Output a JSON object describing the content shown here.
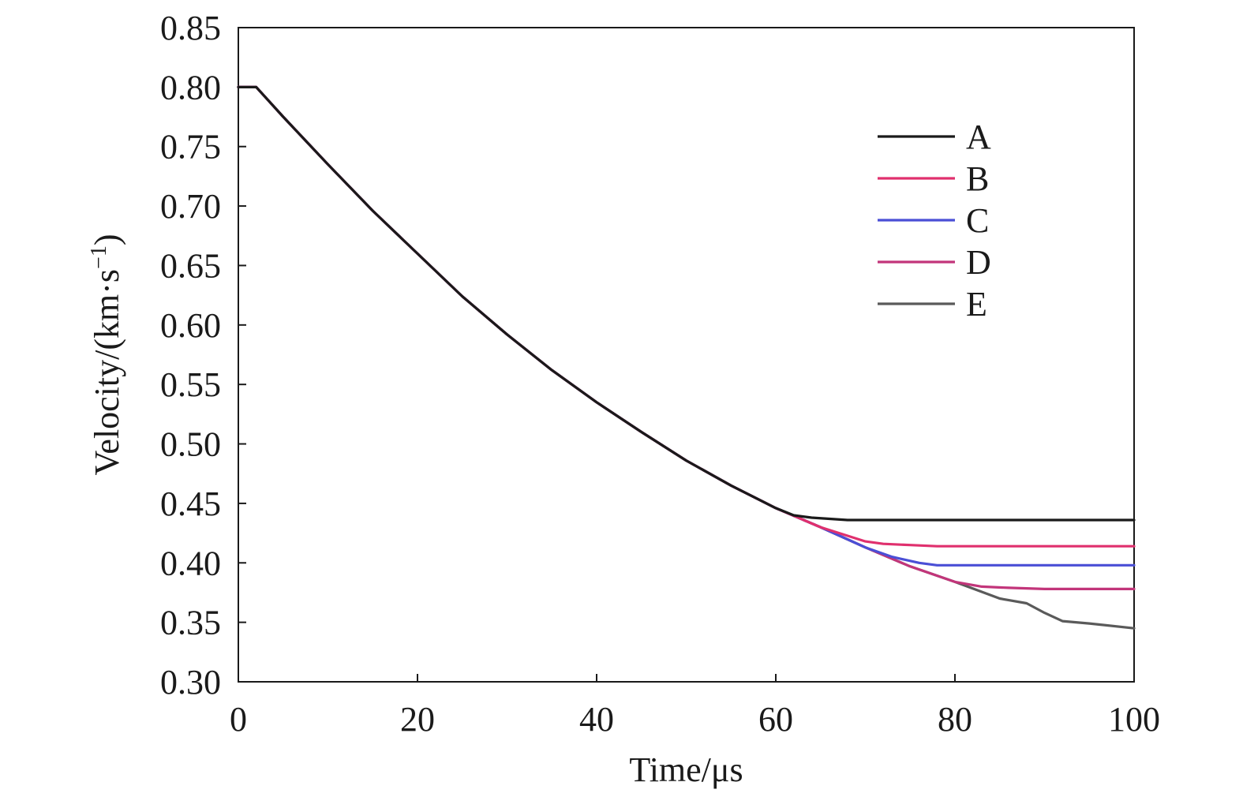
{
  "chart_data": {
    "type": "line",
    "xlabel": "Time/μs",
    "ylabel_main": "Velocity/(km·s",
    "ylabel_sup": "−1",
    "ylabel_end": ")",
    "xlim": [
      0,
      100
    ],
    "ylim": [
      0.3,
      0.85
    ],
    "xticks": [
      0,
      20,
      40,
      60,
      80,
      100
    ],
    "yticks": [
      "0.30",
      "0.35",
      "0.40",
      "0.45",
      "0.50",
      "0.55",
      "0.60",
      "0.65",
      "0.70",
      "0.75",
      "0.80",
      "0.85"
    ],
    "grid": false,
    "legend_position": "top-right",
    "series": [
      {
        "name": "A",
        "color": "#1a1a1a",
        "x": [
          0,
          2,
          5,
          10,
          15,
          20,
          25,
          30,
          35,
          40,
          45,
          50,
          55,
          60,
          62,
          64,
          66,
          68,
          70,
          75,
          80,
          100
        ],
        "y": [
          0.8,
          0.8,
          0.775,
          0.735,
          0.696,
          0.66,
          0.624,
          0.592,
          0.562,
          0.535,
          0.51,
          0.486,
          0.465,
          0.446,
          0.44,
          0.438,
          0.437,
          0.436,
          0.436,
          0.436,
          0.436,
          0.436
        ]
      },
      {
        "name": "B",
        "color": "#e0306e",
        "x": [
          0,
          2,
          5,
          10,
          15,
          20,
          25,
          30,
          35,
          40,
          45,
          50,
          55,
          60,
          65,
          70,
          72,
          75,
          78,
          80,
          85,
          100
        ],
        "y": [
          0.8,
          0.8,
          0.775,
          0.735,
          0.696,
          0.66,
          0.624,
          0.592,
          0.562,
          0.535,
          0.51,
          0.486,
          0.465,
          0.446,
          0.43,
          0.418,
          0.416,
          0.415,
          0.414,
          0.414,
          0.414,
          0.414
        ]
      },
      {
        "name": "C",
        "color": "#4a4fd6",
        "x": [
          0,
          2,
          5,
          10,
          15,
          20,
          25,
          30,
          35,
          40,
          45,
          50,
          55,
          60,
          65,
          70,
          73,
          76,
          78,
          80,
          85,
          100
        ],
        "y": [
          0.8,
          0.8,
          0.775,
          0.735,
          0.696,
          0.66,
          0.624,
          0.592,
          0.562,
          0.535,
          0.51,
          0.486,
          0.465,
          0.446,
          0.43,
          0.413,
          0.405,
          0.4,
          0.398,
          0.398,
          0.398,
          0.398
        ]
      },
      {
        "name": "D",
        "color": "#c2357a",
        "x": [
          0,
          2,
          5,
          10,
          15,
          20,
          25,
          30,
          35,
          40,
          45,
          50,
          55,
          60,
          65,
          70,
          75,
          80,
          83,
          86,
          90,
          100
        ],
        "y": [
          0.8,
          0.8,
          0.775,
          0.735,
          0.696,
          0.66,
          0.624,
          0.592,
          0.562,
          0.535,
          0.51,
          0.486,
          0.465,
          0.446,
          0.43,
          0.413,
          0.397,
          0.384,
          0.38,
          0.379,
          0.378,
          0.378
        ]
      },
      {
        "name": "E",
        "color": "#5a5a5a",
        "x": [
          0,
          2,
          5,
          10,
          15,
          20,
          25,
          30,
          35,
          40,
          45,
          50,
          55,
          60,
          65,
          70,
          75,
          80,
          85,
          88,
          90,
          92,
          95,
          100
        ],
        "y": [
          0.8,
          0.8,
          0.775,
          0.735,
          0.696,
          0.66,
          0.624,
          0.592,
          0.562,
          0.535,
          0.51,
          0.486,
          0.465,
          0.446,
          0.43,
          0.413,
          0.397,
          0.384,
          0.37,
          0.366,
          0.358,
          0.351,
          0.349,
          0.345
        ]
      }
    ]
  }
}
